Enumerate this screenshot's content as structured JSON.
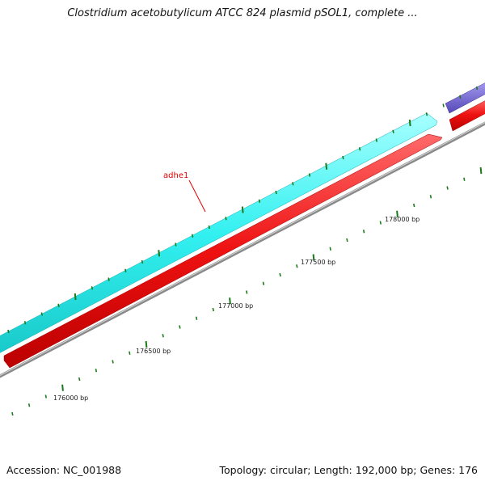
{
  "title": "Clostridium acetobutylicum ATCC 824 plasmid pSOL1, complete ...",
  "footer": {
    "accession": "Accession: NC_001988",
    "summary": "Topology: circular; Length: 192,000 bp; Genes: 176"
  },
  "map": {
    "topology": "circular",
    "position_labels": [
      "176000 bp",
      "176500 bp",
      "177000 bp",
      "177500 bp",
      "178000 bp"
    ],
    "gene_labels": [
      "adhe1"
    ],
    "colors": {
      "forward_genes": "#33f0f0",
      "reverse_genes": "#ee1111",
      "other_genes": "#6a5cc8",
      "backbone": "#888888",
      "ticks": "#1b7a1b",
      "gene_label": "#e00000"
    }
  }
}
